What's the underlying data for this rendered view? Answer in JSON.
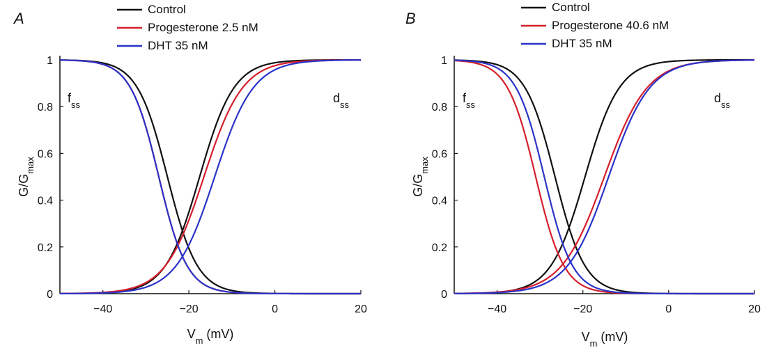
{
  "chart_data": [
    {
      "type": "line",
      "panel_label": "A",
      "xlabel": "V",
      "xlabel_sub": "m",
      "xlabel_unit": "(mV)",
      "ylabel": "G/G",
      "ylabel_sub": "max",
      "xlim": [
        -50,
        20
      ],
      "ylim": [
        0,
        1
      ],
      "xticks": [
        -40,
        -20,
        0,
        20
      ],
      "yticks": [
        0,
        0.2,
        0.4,
        0.6,
        0.8,
        1
      ],
      "grid": false,
      "legend_position": "top-center",
      "curve_tags": [
        {
          "base": "f",
          "sub": "ss"
        },
        {
          "base": "d",
          "sub": "ss"
        }
      ],
      "series": [
        {
          "name": "Control",
          "color": "#111111",
          "activation": {
            "v_half": -17.5,
            "k": 4.0
          },
          "inactivation": {
            "v_half": -25.0,
            "k": 3.5
          }
        },
        {
          "name": "Progesterone 2.5 nM",
          "color": "#d61f2c",
          "activation": {
            "v_half": -16.5,
            "k": 4.5
          },
          "inactivation": {
            "v_half": -27.0,
            "k": 3.3
          }
        },
        {
          "name": "DHT 35 nM",
          "color": "#2a33c8",
          "activation": {
            "v_half": -14.0,
            "k": 4.5
          },
          "inactivation": {
            "v_half": -27.0,
            "k": 3.3
          }
        }
      ]
    },
    {
      "type": "line",
      "panel_label": "B",
      "xlabel": "V",
      "xlabel_sub": "m",
      "xlabel_unit": "(mV)",
      "ylabel": "G/G",
      "ylabel_sub": "max",
      "xlim": [
        -50,
        20
      ],
      "ylim": [
        0,
        1
      ],
      "xticks": [
        -40,
        -20,
        0,
        20
      ],
      "yticks": [
        0,
        0.2,
        0.4,
        0.6,
        0.8,
        1
      ],
      "grid": false,
      "legend_position": "top-center",
      "curve_tags": [
        {
          "base": "f",
          "sub": "ss"
        },
        {
          "base": "d",
          "sub": "ss"
        }
      ],
      "series": [
        {
          "name": "Control",
          "color": "#111111",
          "activation": {
            "v_half": -19.5,
            "k": 4.0
          },
          "inactivation": {
            "v_half": -26.5,
            "k": 3.5
          }
        },
        {
          "name": "Progesterone 40.6 nM",
          "color": "#d61f2c",
          "activation": {
            "v_half": -15.0,
            "k": 5.0
          },
          "inactivation": {
            "v_half": -31.0,
            "k": 3.3
          }
        },
        {
          "name": "DHT 35 nM",
          "color": "#2a33c8",
          "activation": {
            "v_half": -14.0,
            "k": 4.8
          },
          "inactivation": {
            "v_half": -29.0,
            "k": 3.3
          }
        }
      ]
    }
  ]
}
